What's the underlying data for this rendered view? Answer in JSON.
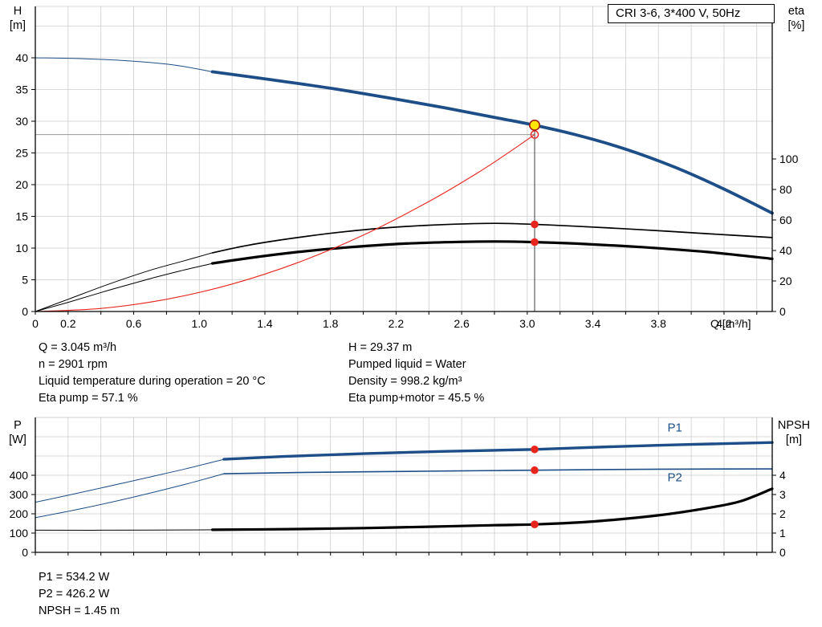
{
  "title": "CRI 3-6, 3*400 V, 50Hz",
  "axis_corner_labels": {
    "top_left_1": "H",
    "top_left_2": "[m]",
    "top_right_1": "eta",
    "top_right_2": "[%]",
    "bottom_left_1": "P",
    "bottom_left_2": "[W]",
    "bottom_right_1": "NPSH",
    "bottom_right_2": "[m]"
  },
  "conditions": {
    "left": [
      "Q = 3.045 m³/h",
      "n = 2901 rpm",
      "Liquid temperature during operation = 20 °C",
      "Eta pump = 57.1 %"
    ],
    "right": [
      "H = 29.37 m",
      "Pumped liquid = Water",
      "Density = 998.2 kg/m³",
      "Eta pump+motor = 45.5 %"
    ]
  },
  "results": [
    "P1 = 534.2 W",
    "P2 = 426.2 W",
    "NPSH = 1.45 m"
  ],
  "colors": {
    "blue": "#1d4e87",
    "black": "#000000",
    "red": "#e8251c",
    "yellow": "#ffe500",
    "duty_stroke": "#a01818",
    "grid": "#cdcdcd"
  },
  "chart_data": [
    {
      "type": "line",
      "title": "CRI 3-6, 3*400 V, 50Hz",
      "xlabel": "Q [m³/h]",
      "x_max": 4.494,
      "grid_x_step": 0.2,
      "grid_y_step": 5,
      "x_tick_values": [
        0,
        0.2,
        0.6,
        1.0,
        1.4,
        1.8,
        2.2,
        2.6,
        3.0,
        3.4,
        3.8,
        4.2
      ],
      "x_tick_labels": [
        "0",
        "0.2",
        "0.6",
        "1.0",
        "1.4",
        "1.8",
        "2.2",
        "2.6",
        "3.0",
        "3.4",
        "3.8",
        "4.2"
      ],
      "left_axis": {
        "label": "H [m]",
        "max": 48.1,
        "ticks": [
          0,
          5,
          10,
          15,
          20,
          25,
          30,
          35,
          40
        ]
      },
      "right_axis": {
        "label": "eta [%]",
        "max": 200,
        "ticks": [
          0,
          20,
          40,
          60,
          80,
          100
        ]
      },
      "crosshair": {
        "q": 3.045,
        "h_duty": 29.37,
        "h_ref": 27.9
      },
      "series": [
        {
          "name": "qh",
          "axis": "left",
          "color": "blue",
          "width": 3.8,
          "lead": [
            [
              0,
              40
            ],
            [
              0.3,
              39.85
            ],
            [
              0.6,
              39.45
            ],
            [
              0.85,
              38.85
            ],
            [
              1.08,
              37.8
            ]
          ],
          "points": [
            [
              1.08,
              37.8
            ],
            [
              1.45,
              36.5
            ],
            [
              1.8,
              35.2
            ],
            [
              2.15,
              33.7
            ],
            [
              2.5,
              32.1
            ],
            [
              2.8,
              30.6
            ],
            [
              3.045,
              29.37
            ],
            [
              3.3,
              27.84
            ],
            [
              3.6,
              25.6
            ],
            [
              3.9,
              22.75
            ],
            [
              4.2,
              19.3
            ],
            [
              4.494,
              15.5
            ]
          ]
        },
        {
          "name": "eta-pump",
          "axis": "right",
          "color": "black",
          "width": 1.7,
          "lead": [
            [
              0,
              0
            ],
            [
              0.2,
              8
            ],
            [
              0.45,
              18
            ],
            [
              0.7,
              27
            ],
            [
              0.9,
              33
            ],
            [
              1.08,
              38.5
            ]
          ],
          "points": [
            [
              1.08,
              38.5
            ],
            [
              1.3,
              43.5
            ],
            [
              1.6,
              48.5
            ],
            [
              1.9,
              52.5
            ],
            [
              2.2,
              55.3
            ],
            [
              2.5,
              57.0
            ],
            [
              2.8,
              57.8
            ],
            [
              3.045,
              57.1
            ],
            [
              3.3,
              55.9
            ],
            [
              3.7,
              53.6
            ],
            [
              4.1,
              51.0
            ],
            [
              4.494,
              48.5
            ]
          ]
        },
        {
          "name": "eta-pump-motor",
          "axis": "right",
          "color": "black",
          "width": 3.2,
          "lead": [
            [
              0,
              0
            ],
            [
              0.2,
              6
            ],
            [
              0.45,
              14
            ],
            [
              0.7,
              21.5
            ],
            [
              0.9,
              27
            ],
            [
              1.08,
              31.5
            ]
          ],
          "points": [
            [
              1.08,
              31.5
            ],
            [
              1.3,
              35.0
            ],
            [
              1.6,
              39.0
            ],
            [
              1.9,
              42.0
            ],
            [
              2.2,
              44.2
            ],
            [
              2.5,
              45.4
            ],
            [
              2.8,
              45.9
            ],
            [
              3.045,
              45.5
            ],
            [
              3.3,
              44.5
            ],
            [
              3.7,
              42.2
            ],
            [
              4.1,
              39.0
            ],
            [
              4.494,
              34.5
            ]
          ]
        },
        {
          "name": "system-curve",
          "axis": "left",
          "color": "red",
          "width": 1.1,
          "points": [
            [
              0,
              0
            ],
            [
              0.4,
              0.48
            ],
            [
              0.8,
              1.93
            ],
            [
              1.2,
              4.33
            ],
            [
              1.6,
              7.7
            ],
            [
              2.0,
              12.04
            ],
            [
              2.4,
              17.34
            ],
            [
              2.7,
              21.9
            ],
            [
              2.9,
              25.3
            ],
            [
              3.045,
              27.9
            ]
          ]
        }
      ],
      "dots": [
        {
          "q": 3.045,
          "axis": "right",
          "v": 57.1
        },
        {
          "q": 3.045,
          "axis": "right",
          "v": 45.5
        }
      ],
      "markers": {
        "duty_point": {
          "q": 3.045,
          "h": 29.37
        },
        "ref_point": {
          "q": 3.045,
          "h": 27.9
        }
      }
    },
    {
      "type": "line",
      "x_max": 4.494,
      "grid_x_step": 0.2,
      "grid_y_step": 100,
      "left_axis": {
        "label": "P [W]",
        "max": 700,
        "ticks": [
          0,
          100,
          200,
          300,
          400
        ]
      },
      "right_axis": {
        "label": "NPSH [m]",
        "max": 7,
        "ticks": [
          0,
          1,
          2,
          3,
          4
        ]
      },
      "series": [
        {
          "name": "p1",
          "axis": "left",
          "color": "blue",
          "width": 3.4,
          "label": {
            "text": "P1",
            "q": 3.9,
            "v": 627
          },
          "lead": [
            [
              0,
              260
            ],
            [
              0.3,
              315
            ],
            [
              0.6,
              372
            ],
            [
              0.9,
              430
            ],
            [
              1.15,
              483
            ]
          ],
          "points": [
            [
              1.15,
              483
            ],
            [
              1.5,
              497
            ],
            [
              2.0,
              512
            ],
            [
              2.5,
              524
            ],
            [
              3.045,
              534.2
            ],
            [
              3.5,
              548
            ],
            [
              4.0,
              560
            ],
            [
              4.494,
              570
            ]
          ]
        },
        {
          "name": "p2",
          "axis": "left",
          "color": "blue",
          "width": 1.6,
          "label": {
            "text": "P2",
            "q": 3.9,
            "v": 368
          },
          "lead": [
            [
              0,
              180
            ],
            [
              0.3,
              230
            ],
            [
              0.6,
              287
            ],
            [
              0.9,
              350
            ],
            [
              1.15,
              408
            ]
          ],
          "points": [
            [
              1.15,
              408
            ],
            [
              1.6,
              414
            ],
            [
              2.0,
              418
            ],
            [
              2.5,
              422
            ],
            [
              3.045,
              426.2
            ],
            [
              3.5,
              430
            ],
            [
              4.0,
              432
            ],
            [
              4.494,
              433
            ]
          ]
        },
        {
          "name": "npsh",
          "axis": "right",
          "color": "black",
          "width": 3.2,
          "lead": [
            [
              0,
              1.15
            ],
            [
              0.5,
              1.15
            ],
            [
              1.08,
              1.17
            ]
          ],
          "points": [
            [
              1.08,
              1.17
            ],
            [
              1.6,
              1.21
            ],
            [
              2.0,
              1.26
            ],
            [
              2.4,
              1.33
            ],
            [
              2.8,
              1.41
            ],
            [
              3.045,
              1.45
            ],
            [
              3.4,
              1.6
            ],
            [
              3.8,
              1.92
            ],
            [
              4.1,
              2.3
            ],
            [
              4.3,
              2.65
            ],
            [
              4.494,
              3.3
            ]
          ]
        }
      ],
      "dots": [
        {
          "q": 3.045,
          "axis": "left",
          "v": 534.2
        },
        {
          "q": 3.045,
          "axis": "left",
          "v": 426.2
        },
        {
          "q": 3.045,
          "axis": "right",
          "v": 1.45
        }
      ]
    }
  ]
}
